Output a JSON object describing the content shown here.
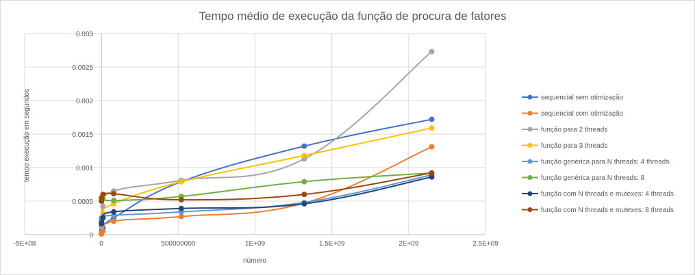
{
  "chart_data": {
    "type": "scatter",
    "title": "Tempo médio de execução da função de procura de fatores",
    "xlabel": "número",
    "ylabel": "tempo  execução em segundos",
    "xlim": [
      -500000000,
      2500000000
    ],
    "ylim": [
      0,
      0.003
    ],
    "x_ticks": [
      "-5E+08",
      "0",
      "500000000",
      "1E+09",
      "1.5E+09",
      "2E+09",
      "2.5E+09"
    ],
    "y_ticks": [
      "0",
      "0.0005",
      "0.001",
      "0.0015",
      "0.002",
      "0.0025",
      "0.003"
    ],
    "grid": true,
    "legend_position": "right",
    "smooth_lines": true,
    "series": [
      {
        "name": "sequencial sem otimização",
        "color": "#4472C4",
        "x": [
          1000,
          1000000,
          10000000,
          80000000,
          520000000,
          1320000000,
          2150000000
        ],
        "y": [
          2e-05,
          6e-05,
          0.0001,
          0.00025,
          0.00079,
          0.00132,
          0.00172
        ]
      },
      {
        "name": "sequencial com otimização",
        "color": "#ED7D31",
        "x": [
          1000,
          1000000,
          10000000,
          80000000,
          520000000,
          1320000000,
          2150000000
        ],
        "y": [
          1e-05,
          3e-05,
          5e-05,
          0.0002,
          0.00027,
          0.00047,
          0.00131
        ]
      },
      {
        "name": "função para 2 threads",
        "color": "#A5A5A5",
        "x": [
          1000,
          1000000,
          10000000,
          80000000,
          520000000,
          1320000000,
          2150000000
        ],
        "y": [
          0.00012,
          0.00022,
          0.00042,
          0.00065,
          0.00081,
          0.00113,
          0.00273
        ]
      },
      {
        "name": "função para 3 threads",
        "color": "#FFC000",
        "x": [
          1000,
          1000000,
          10000000,
          80000000,
          520000000,
          1320000000,
          2150000000
        ],
        "y": [
          0.00018,
          0.0002,
          0.00032,
          0.00046,
          0.00079,
          0.00118,
          0.00159
        ]
      },
      {
        "name": "função genérica para N threads: 4 threads",
        "color": "#5B9BD5",
        "x": [
          1000,
          1000000,
          10000000,
          80000000,
          520000000,
          1320000000,
          2150000000
        ],
        "y": [
          0.00023,
          0.00025,
          0.00027,
          0.00029,
          0.00034,
          0.00048,
          0.00089
        ]
      },
      {
        "name": "função genérica para N threads: 8",
        "color": "#70AD47",
        "x": [
          1000,
          1000000,
          10000000,
          80000000,
          520000000,
          1320000000,
          2150000000
        ],
        "y": [
          0.00052,
          0.00053,
          0.00054,
          0.00051,
          0.00057,
          0.00079,
          0.00092
        ]
      },
      {
        "name": "função com N threads e mutexes: 4 threads",
        "color": "#264478",
        "x": [
          1000,
          1000000,
          10000000,
          80000000,
          520000000,
          1320000000,
          2150000000
        ],
        "y": [
          0.00016,
          0.00018,
          0.00025,
          0.00034,
          0.00039,
          0.00046,
          0.00086
        ]
      },
      {
        "name": "função com N threads e mutexes: 8 threads",
        "color": "#9E480E",
        "x": [
          1000,
          1000000,
          10000000,
          80000000,
          520000000,
          1320000000,
          2150000000
        ],
        "y": [
          0.0005,
          0.00055,
          0.0006,
          0.00061,
          0.00052,
          0.0006,
          0.00092
        ]
      }
    ]
  }
}
